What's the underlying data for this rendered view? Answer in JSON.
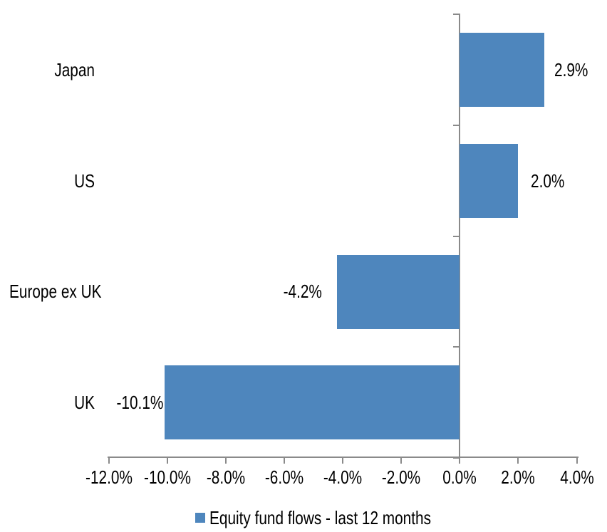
{
  "chart_data": {
    "type": "bar",
    "orientation": "horizontal",
    "title": "",
    "categories": [
      "Japan",
      "US",
      "Europe ex UK",
      "UK"
    ],
    "series": [
      {
        "name": "Equity fund flows - last 12 months",
        "values": [
          2.9,
          2.0,
          -4.2,
          -10.1
        ],
        "data_labels": [
          "2.9%",
          "2.0%",
          "-4.2%",
          "-10.1%"
        ]
      }
    ],
    "xlabel": "",
    "ylabel": "",
    "xlim": [
      -12,
      4
    ],
    "x_ticks": [
      {
        "v": -12,
        "label": "-12.0%"
      },
      {
        "v": -10,
        "label": "-10.0%"
      },
      {
        "v": -8,
        "label": "-8.0%"
      },
      {
        "v": -6,
        "label": "-6.0%"
      },
      {
        "v": -4,
        "label": "-4.0%"
      },
      {
        "v": -2,
        "label": "-2.0%"
      },
      {
        "v": 0,
        "label": "0.0%"
      },
      {
        "v": 2,
        "label": "2.0%"
      },
      {
        "v": 4,
        "label": "4.0%"
      }
    ],
    "grid": false,
    "legend_position": "bottom",
    "colors": {
      "bar": "#4E86BD",
      "axis": "#8A8A8A",
      "text": "#000000",
      "background": "#FFFFFF"
    }
  },
  "legend": {
    "label": "Equity fund flows - last 12 months"
  }
}
